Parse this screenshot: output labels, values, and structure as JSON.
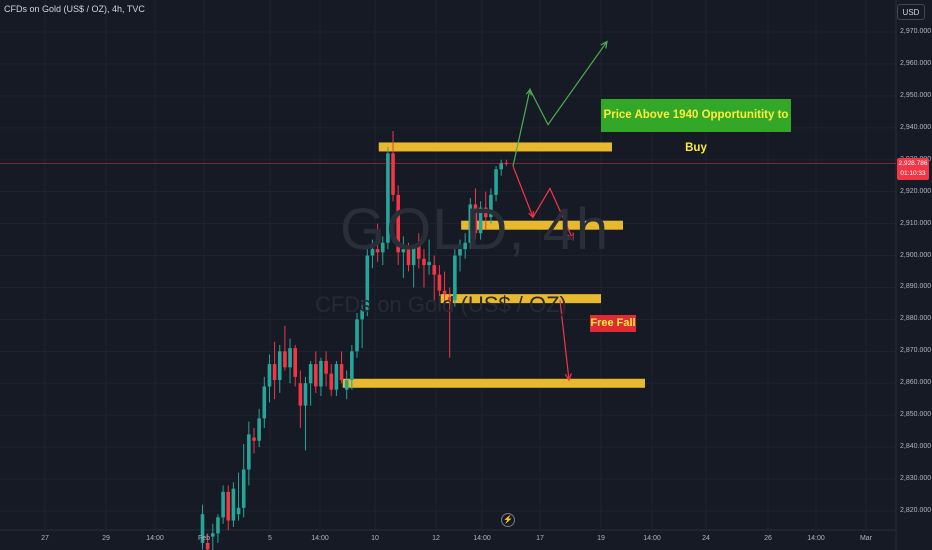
{
  "header": {
    "symbol_title": "CFDs on Gold (US$ / OZ), 4h, TVC"
  },
  "currency_button": "USD",
  "watermark": {
    "symbol": "GOLD, 4h",
    "description": "CFDs on Gold (US$ / OZ)"
  },
  "price_axis": {
    "labels": [
      "2,970.000",
      "2,960.000",
      "2,950.000",
      "2,940.000",
      "2,930.000",
      "2,920.000",
      "2,910.000",
      "2,900.000",
      "2,890.000",
      "2,880.000",
      "2,870.000",
      "2,860.000",
      "2,850.000",
      "2,840.000",
      "2,830.000",
      "2,820.000"
    ],
    "last_price": "2,928.786",
    "countdown": "01:10:33"
  },
  "time_axis": {
    "labels": [
      "27",
      "29",
      "14:00",
      "Feb",
      "5",
      "14:00",
      "10",
      "12",
      "14:00",
      "17",
      "19",
      "14:00",
      "24",
      "26",
      "14:00",
      "Mar"
    ]
  },
  "annotations": {
    "buy_note": "Price Above 1940 Opportunitity to Buy",
    "fall_note": "Free Fall"
  },
  "colors": {
    "up": "#26a69a",
    "down": "#f23645",
    "zone": "#e8b82e",
    "bg": "#161a25",
    "buy_note_bg": "#33a828",
    "note_text": "#ffeb3b"
  },
  "chart_data": {
    "type": "candlestick",
    "title": "CFDs on Gold (US$ / OZ), 4h, TVC",
    "ylim": [
      2815,
      2975
    ],
    "y_ticks": [
      2970,
      2960,
      2950,
      2940,
      2930,
      2920,
      2910,
      2900,
      2890,
      2880,
      2870,
      2860,
      2850,
      2840,
      2830,
      2820
    ],
    "x_ticks": [
      "27",
      "29",
      "14:00",
      "Feb",
      "5",
      "14:00",
      "10",
      "12",
      "14:00",
      "17",
      "19",
      "14:00",
      "24",
      "26",
      "14:00",
      "Mar"
    ],
    "candles": [
      {
        "o": 2810,
        "h": 2822,
        "l": 2808,
        "c": 2819
      },
      {
        "o": 2810,
        "h": 2813,
        "l": 2805,
        "c": 2808
      },
      {
        "o": 2812,
        "h": 2816,
        "l": 2806,
        "c": 2813
      },
      {
        "o": 2813,
        "h": 2819,
        "l": 2810,
        "c": 2818
      },
      {
        "o": 2818,
        "h": 2828,
        "l": 2816,
        "c": 2826
      },
      {
        "o": 2826,
        "h": 2828,
        "l": 2814,
        "c": 2817
      },
      {
        "o": 2817,
        "h": 2829,
        "l": 2815,
        "c": 2827
      },
      {
        "o": 2819,
        "h": 2832,
        "l": 2817,
        "c": 2821
      },
      {
        "o": 2821,
        "h": 2841,
        "l": 2818,
        "c": 2833
      },
      {
        "o": 2833,
        "h": 2848,
        "l": 2828,
        "c": 2844
      },
      {
        "o": 2843,
        "h": 2846,
        "l": 2838,
        "c": 2842
      },
      {
        "o": 2842,
        "h": 2852,
        "l": 2840,
        "c": 2849
      },
      {
        "o": 2849,
        "h": 2862,
        "l": 2846,
        "c": 2859
      },
      {
        "o": 2859,
        "h": 2869,
        "l": 2854,
        "c": 2866
      },
      {
        "o": 2866,
        "h": 2873,
        "l": 2855,
        "c": 2861
      },
      {
        "o": 2861,
        "h": 2872,
        "l": 2857,
        "c": 2870
      },
      {
        "o": 2870,
        "h": 2878,
        "l": 2864,
        "c": 2865
      },
      {
        "o": 2865,
        "h": 2874,
        "l": 2860,
        "c": 2871
      },
      {
        "o": 2871,
        "h": 2872,
        "l": 2859,
        "c": 2862
      },
      {
        "o": 2860,
        "h": 2864,
        "l": 2846,
        "c": 2853
      },
      {
        "o": 2853,
        "h": 2862,
        "l": 2839,
        "c": 2860
      },
      {
        "o": 2860,
        "h": 2867,
        "l": 2853,
        "c": 2866
      },
      {
        "o": 2866,
        "h": 2870,
        "l": 2857,
        "c": 2859
      },
      {
        "o": 2859,
        "h": 2868,
        "l": 2856,
        "c": 2867
      },
      {
        "o": 2867,
        "h": 2870,
        "l": 2859,
        "c": 2863
      },
      {
        "o": 2863,
        "h": 2866,
        "l": 2856,
        "c": 2858
      },
      {
        "o": 2858,
        "h": 2867,
        "l": 2856,
        "c": 2866
      },
      {
        "o": 2866,
        "h": 2870,
        "l": 2860,
        "c": 2861
      },
      {
        "o": 2858,
        "h": 2864,
        "l": 2855,
        "c": 2861
      },
      {
        "o": 2861,
        "h": 2872,
        "l": 2858,
        "c": 2870
      },
      {
        "o": 2870,
        "h": 2882,
        "l": 2868,
        "c": 2880
      },
      {
        "o": 2880,
        "h": 2886,
        "l": 2871,
        "c": 2883
      },
      {
        "o": 2883,
        "h": 2902,
        "l": 2881,
        "c": 2900
      },
      {
        "o": 2900,
        "h": 2905,
        "l": 2896,
        "c": 2902
      },
      {
        "o": 2902,
        "h": 2910,
        "l": 2898,
        "c": 2901
      },
      {
        "o": 2901,
        "h": 2906,
        "l": 2897,
        "c": 2904
      },
      {
        "o": 2904,
        "h": 2934,
        "l": 2902,
        "c": 2932
      },
      {
        "o": 2932,
        "h": 2939,
        "l": 2917,
        "c": 2919
      },
      {
        "o": 2919,
        "h": 2922,
        "l": 2897,
        "c": 2901
      },
      {
        "o": 2901,
        "h": 2906,
        "l": 2893,
        "c": 2902
      },
      {
        "o": 2902,
        "h": 2904,
        "l": 2895,
        "c": 2897
      },
      {
        "o": 2897,
        "h": 2903,
        "l": 2890,
        "c": 2903
      },
      {
        "o": 2903,
        "h": 2907,
        "l": 2896,
        "c": 2899
      },
      {
        "o": 2899,
        "h": 2902,
        "l": 2890,
        "c": 2897
      },
      {
        "o": 2897,
        "h": 2905,
        "l": 2894,
        "c": 2898
      },
      {
        "o": 2897,
        "h": 2900,
        "l": 2886,
        "c": 2894
      },
      {
        "o": 2894,
        "h": 2897,
        "l": 2883,
        "c": 2889
      },
      {
        "o": 2889,
        "h": 2895,
        "l": 2884,
        "c": 2888
      },
      {
        "o": 2887,
        "h": 2890,
        "l": 2868,
        "c": 2886
      },
      {
        "o": 2886,
        "h": 2902,
        "l": 2884,
        "c": 2900
      },
      {
        "o": 2900,
        "h": 2905,
        "l": 2895,
        "c": 2902
      },
      {
        "o": 2902,
        "h": 2907,
        "l": 2899,
        "c": 2904
      },
      {
        "o": 2904,
        "h": 2918,
        "l": 2902,
        "c": 2916
      },
      {
        "o": 2916,
        "h": 2921,
        "l": 2905,
        "c": 2907
      },
      {
        "o": 2907,
        "h": 2917,
        "l": 2905,
        "c": 2915
      },
      {
        "o": 2915,
        "h": 2920,
        "l": 2908,
        "c": 2912
      },
      {
        "o": 2912,
        "h": 2921,
        "l": 2910,
        "c": 2919
      },
      {
        "o": 2919,
        "h": 2928,
        "l": 2917,
        "c": 2927
      },
      {
        "o": 2927,
        "h": 2930,
        "l": 2925,
        "c": 2929
      },
      {
        "o": 2929,
        "h": 2930,
        "l": 2928,
        "c": 2928.79
      }
    ],
    "zones": [
      {
        "price": 2934,
        "from_candle": 35,
        "to_x_label": "14:00"
      },
      {
        "price": 2909.5,
        "from_candle": 51,
        "to_x_label": "19"
      },
      {
        "price": 2886.5,
        "from_candle": 47,
        "to_x_label": "19"
      },
      {
        "price": 2860,
        "from_candle": 28,
        "to_x_label": "14:00"
      }
    ],
    "projections": [
      {
        "color": "up",
        "path": [
          2928,
          2952,
          2941,
          2967
        ]
      },
      {
        "color": "down",
        "path": [
          2928,
          2912,
          2921,
          2905
        ]
      },
      {
        "color": "down",
        "path": [
          2886,
          2861
        ]
      }
    ]
  }
}
